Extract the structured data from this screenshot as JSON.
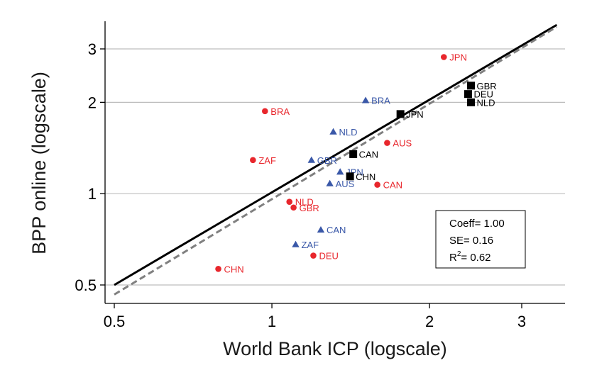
{
  "chart_data": {
    "type": "scatter",
    "title": "",
    "xlabel": "World Bank ICP (logscale)",
    "ylabel": "BPP online (logscale)",
    "x_scale": "log",
    "y_scale": "log",
    "xlim": [
      0.47,
      3.5
    ],
    "ylim": [
      0.47,
      3.5
    ],
    "x_ticks": [
      {
        "value": 0.5,
        "label": "0.5"
      },
      {
        "value": 1,
        "label": "1"
      },
      {
        "value": 2,
        "label": "2"
      },
      {
        "value": 3,
        "label": "3"
      }
    ],
    "y_ticks": [
      {
        "value": 0.5,
        "label": "0.5"
      },
      {
        "value": 1,
        "label": "1"
      },
      {
        "value": 2,
        "label": "2"
      },
      {
        "value": 3,
        "label": "3"
      }
    ],
    "grid": "horizontal",
    "series": [
      {
        "marker": "circle",
        "color": "#e8262c",
        "points": [
          {
            "label": "JPN",
            "x": 2.13,
            "y": 2.82
          },
          {
            "label": "BRA",
            "x": 0.97,
            "y": 1.87
          },
          {
            "label": "AUS",
            "x": 1.66,
            "y": 1.47
          },
          {
            "label": "ZAF",
            "x": 0.92,
            "y": 1.29
          },
          {
            "label": "CAN",
            "x": 1.59,
            "y": 1.07
          },
          {
            "label": "NLD",
            "x": 1.08,
            "y": 0.94
          },
          {
            "label": "GBR",
            "x": 1.1,
            "y": 0.9
          },
          {
            "label": "DEU",
            "x": 1.2,
            "y": 0.625
          },
          {
            "label": "CHN",
            "x": 0.79,
            "y": 0.565
          }
        ]
      },
      {
        "marker": "triangle",
        "color": "#3a58a8",
        "points": [
          {
            "label": "BRA",
            "x": 1.51,
            "y": 2.03
          },
          {
            "label": "NLD",
            "x": 1.31,
            "y": 1.6
          },
          {
            "label": "GBR",
            "x": 1.19,
            "y": 1.29
          },
          {
            "label": "JPN",
            "x": 1.35,
            "y": 1.18
          },
          {
            "label": "AUS",
            "x": 1.29,
            "y": 1.08
          },
          {
            "label": "CAN",
            "x": 1.24,
            "y": 0.76
          },
          {
            "label": "ZAF",
            "x": 1.11,
            "y": 0.68
          }
        ]
      },
      {
        "marker": "square",
        "color": "#000000",
        "points": [
          {
            "label": "GBR",
            "x": 2.4,
            "y": 2.27
          },
          {
            "label": "DEU",
            "x": 2.37,
            "y": 2.13
          },
          {
            "label": "NLD",
            "x": 2.4,
            "y": 2.0
          },
          {
            "label": "JPN",
            "x": 1.76,
            "y": 1.83
          },
          {
            "label": "CAN",
            "x": 1.43,
            "y": 1.35
          },
          {
            "label": "CHN",
            "x": 1.41,
            "y": 1.14
          }
        ]
      }
    ],
    "lines": [
      {
        "style": "solid",
        "color": "#000000",
        "x": [
          0.5,
          3.5
        ],
        "y": [
          0.5,
          3.6
        ]
      },
      {
        "style": "dashed",
        "color": "#808080",
        "x": [
          0.5,
          3.5
        ],
        "y": [
          0.465,
          3.55
        ]
      }
    ],
    "stats_box": {
      "coeff": "Coeff= 1.00",
      "se": "SE= 0.16",
      "r2_prefix": "R",
      "r2_sup": "2",
      "r2_suffix": "= 0.62"
    }
  }
}
